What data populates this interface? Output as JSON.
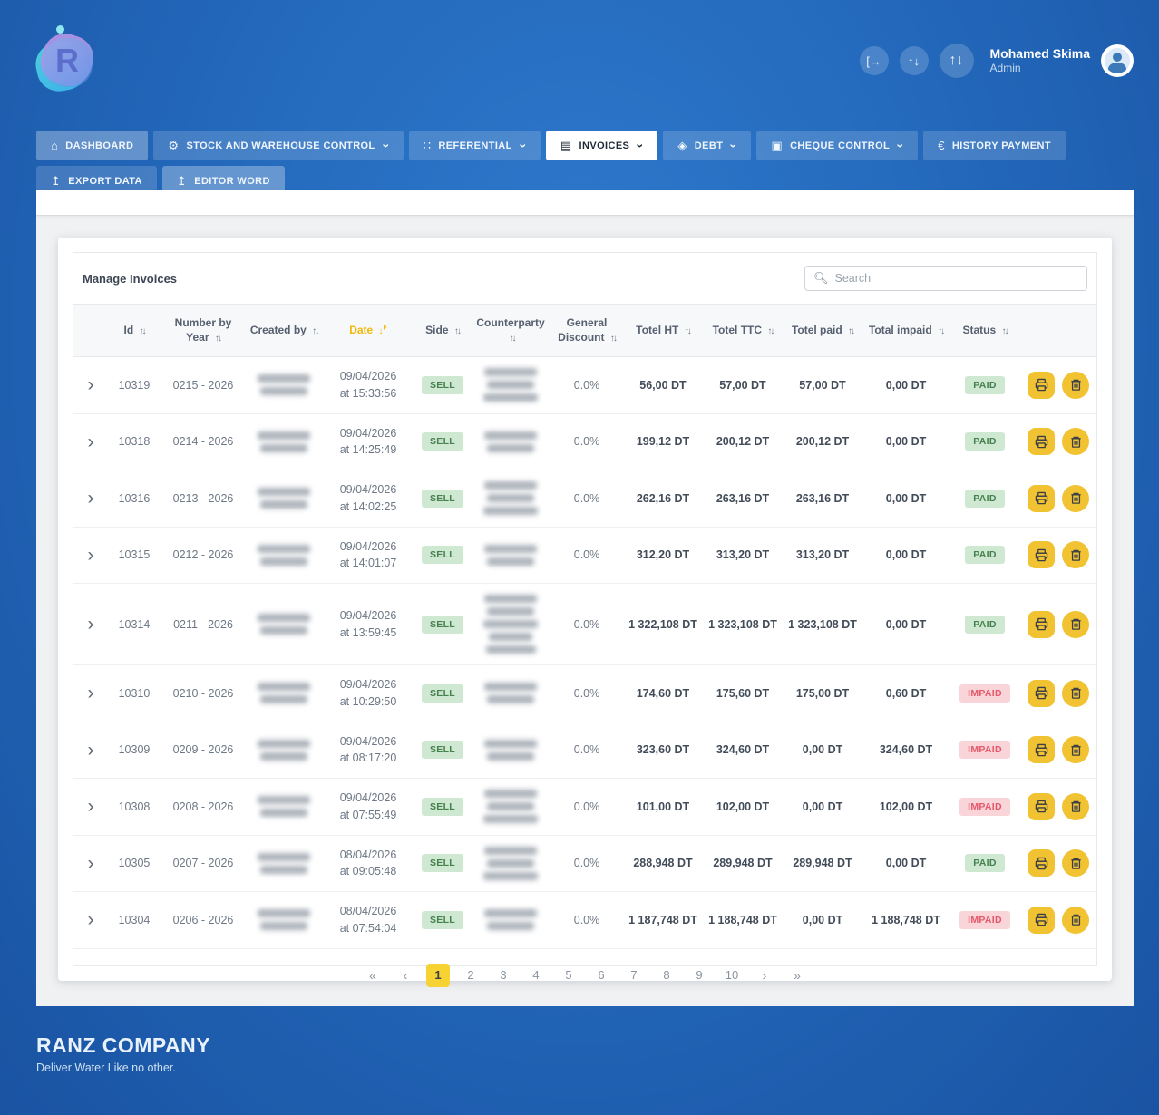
{
  "user": {
    "name": "Mohamed Skima",
    "role": "Admin"
  },
  "topbar": {
    "logout_icon": "logout-icon",
    "sort_small_icon": "swap-arrows-icon",
    "sort_large_icon": "swap-arrows-icon"
  },
  "logo": {
    "letter": "R"
  },
  "nav": {
    "items": [
      {
        "label": "DASHBOARD",
        "icon": "home-icon",
        "glyph": "⌂",
        "chevron": false,
        "active": false,
        "light": true
      },
      {
        "label": "STOCK AND WAREHOUSE CONTROL",
        "icon": "warehouse-icon",
        "glyph": "⚙",
        "chevron": true,
        "active": false,
        "light": false
      },
      {
        "label": "REFERENTIAL",
        "icon": "grid-icon",
        "glyph": "∷",
        "chevron": true,
        "active": false,
        "light": false
      },
      {
        "label": "INVOICES",
        "icon": "invoice-icon",
        "glyph": "▤",
        "chevron": true,
        "active": true,
        "light": false
      },
      {
        "label": "DEBT",
        "icon": "debt-icon",
        "glyph": "◈",
        "chevron": true,
        "active": false,
        "light": false
      },
      {
        "label": "CHEQUE CONTROL",
        "icon": "cheque-icon",
        "glyph": "▣",
        "chevron": true,
        "active": false,
        "light": false
      },
      {
        "label": "HISTORY PAYMENT",
        "icon": "euro-icon",
        "glyph": "€",
        "chevron": false,
        "active": false,
        "light": false
      },
      {
        "label": "EXPORT DATA",
        "icon": "export-icon",
        "glyph": "↥",
        "chevron": false,
        "active": false,
        "light": false
      },
      {
        "label": "EDITOR WORD",
        "icon": "upload-icon",
        "glyph": "↥",
        "chevron": false,
        "active": false,
        "light": true
      }
    ]
  },
  "panel": {
    "title": "Manage Invoices",
    "search_placeholder": "Search"
  },
  "table": {
    "columns": [
      {
        "label": "Id",
        "sort": "default"
      },
      {
        "label": "Number by Year",
        "sort": "default"
      },
      {
        "label": "Created by",
        "sort": "default"
      },
      {
        "label": "Date",
        "sort": "active-desc"
      },
      {
        "label": "Side",
        "sort": "default"
      },
      {
        "label": "Counterparty",
        "sort": "default"
      },
      {
        "label": "General Discount",
        "sort": "default"
      },
      {
        "label": "Totel HT",
        "sort": "default"
      },
      {
        "label": "Totel TTC",
        "sort": "default"
      },
      {
        "label": "Totel paid",
        "sort": "default"
      },
      {
        "label": "Total impaid",
        "sort": "default"
      },
      {
        "label": "Status",
        "sort": "default"
      }
    ],
    "rows": [
      {
        "id": "10319",
        "number": "0215 - 2026",
        "created_by_blur_lines": 2,
        "date": "09/04/2026",
        "time": "at 15:33:56",
        "side": "SELL",
        "counterparty_blur_lines": 3,
        "discount": "0.0%",
        "total_ht": "56,00 DT",
        "total_ttc": "57,00 DT",
        "total_paid": "57,00 DT",
        "total_impaid": "0,00 DT",
        "status": "PAID"
      },
      {
        "id": "10318",
        "number": "0214 - 2026",
        "created_by_blur_lines": 2,
        "date": "09/04/2026",
        "time": "at 14:25:49",
        "side": "SELL",
        "counterparty_blur_lines": 2,
        "discount": "0.0%",
        "total_ht": "199,12 DT",
        "total_ttc": "200,12 DT",
        "total_paid": "200,12 DT",
        "total_impaid": "0,00 DT",
        "status": "PAID"
      },
      {
        "id": "10316",
        "number": "0213 - 2026",
        "created_by_blur_lines": 2,
        "date": "09/04/2026",
        "time": "at 14:02:25",
        "side": "SELL",
        "counterparty_blur_lines": 3,
        "discount": "0.0%",
        "total_ht": "262,16 DT",
        "total_ttc": "263,16 DT",
        "total_paid": "263,16 DT",
        "total_impaid": "0,00 DT",
        "status": "PAID"
      },
      {
        "id": "10315",
        "number": "0212 - 2026",
        "created_by_blur_lines": 2,
        "date": "09/04/2026",
        "time": "at 14:01:07",
        "side": "SELL",
        "counterparty_blur_lines": 2,
        "discount": "0.0%",
        "total_ht": "312,20 DT",
        "total_ttc": "313,20 DT",
        "total_paid": "313,20 DT",
        "total_impaid": "0,00 DT",
        "status": "PAID"
      },
      {
        "id": "10314",
        "number": "0211 - 2026",
        "created_by_blur_lines": 2,
        "date": "09/04/2026",
        "time": "at 13:59:45",
        "side": "SELL",
        "counterparty_blur_lines": 5,
        "discount": "0.0%",
        "total_ht": "1 322,108 DT",
        "total_ttc": "1 323,108 DT",
        "total_paid": "1 323,108 DT",
        "total_impaid": "0,00 DT",
        "status": "PAID"
      },
      {
        "id": "10310",
        "number": "0210 - 2026",
        "created_by_blur_lines": 2,
        "date": "09/04/2026",
        "time": "at 10:29:50",
        "side": "SELL",
        "counterparty_blur_lines": 2,
        "discount": "0.0%",
        "total_ht": "174,60 DT",
        "total_ttc": "175,60 DT",
        "total_paid": "175,00 DT",
        "total_impaid": "0,60 DT",
        "status": "IMPAID"
      },
      {
        "id": "10309",
        "number": "0209 - 2026",
        "created_by_blur_lines": 2,
        "date": "09/04/2026",
        "time": "at 08:17:20",
        "side": "SELL",
        "counterparty_blur_lines": 2,
        "discount": "0.0%",
        "total_ht": "323,60 DT",
        "total_ttc": "324,60 DT",
        "total_paid": "0,00 DT",
        "total_impaid": "324,60 DT",
        "status": "IMPAID"
      },
      {
        "id": "10308",
        "number": "0208 - 2026",
        "created_by_blur_lines": 2,
        "date": "09/04/2026",
        "time": "at 07:55:49",
        "side": "SELL",
        "counterparty_blur_lines": 3,
        "discount": "0.0%",
        "total_ht": "101,00 DT",
        "total_ttc": "102,00 DT",
        "total_paid": "0,00 DT",
        "total_impaid": "102,00 DT",
        "status": "IMPAID"
      },
      {
        "id": "10305",
        "number": "0207 - 2026",
        "created_by_blur_lines": 2,
        "date": "08/04/2026",
        "time": "at 09:05:48",
        "side": "SELL",
        "counterparty_blur_lines": 3,
        "discount": "0.0%",
        "total_ht": "288,948 DT",
        "total_ttc": "289,948 DT",
        "total_paid": "289,948 DT",
        "total_impaid": "0,00 DT",
        "status": "PAID"
      },
      {
        "id": "10304",
        "number": "0206 - 2026",
        "created_by_blur_lines": 2,
        "date": "08/04/2026",
        "time": "at 07:54:04",
        "side": "SELL",
        "counterparty_blur_lines": 2,
        "discount": "0.0%",
        "total_ht": "1 187,748 DT",
        "total_ttc": "1 188,748 DT",
        "total_paid": "0,00 DT",
        "total_impaid": "1 188,748 DT",
        "status": "IMPAID"
      }
    ],
    "action_icons": [
      "print-icon",
      "trash-icon"
    ]
  },
  "pagination": {
    "first": "«",
    "prev": "‹",
    "pages": [
      "1",
      "2",
      "3",
      "4",
      "5",
      "6",
      "7",
      "8",
      "9",
      "10"
    ],
    "active_page": "1",
    "next": "›",
    "last": "»"
  },
  "footer": {
    "company": "RANZ COMPANY",
    "tagline": "Deliver Water Like no other."
  },
  "colors": {
    "background_blue": "#2368bb",
    "nav_active_bg": "#ffffff",
    "sort_active": "#f2b807",
    "badge_green_bg": "#cfe8d2",
    "badge_green_text": "#45804d",
    "badge_red_bg": "#f9d4d8",
    "badge_red_text": "#e3596b",
    "action_yellow": "#f1c231",
    "pagination_active": "#f6d232"
  }
}
